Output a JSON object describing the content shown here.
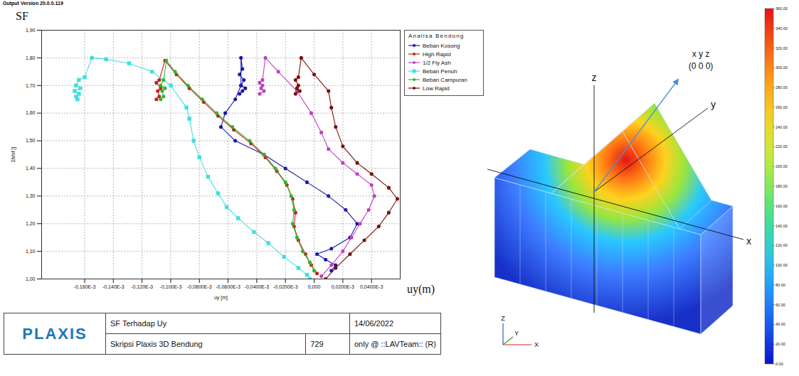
{
  "header": {
    "version": "Output Version 20.0.0.119"
  },
  "chart_data": {
    "type": "line",
    "x_label": "uy [m]",
    "y_label": "ΣMsf []",
    "annotations": [
      "SF",
      "uy(m)"
    ],
    "legend_title": "Analisa Bendung",
    "legend": "right",
    "grid": true,
    "xlim": [
      -0.00019,
      6e-05
    ],
    "ylim": [
      1.0,
      1.9
    ],
    "xticks": [
      {
        "value": -0.00016,
        "label": "-0,160E-3"
      },
      {
        "value": -0.00014,
        "label": "-0,140E-3"
      },
      {
        "value": -0.00012,
        "label": "-0,120E-3"
      },
      {
        "value": -0.0001,
        "label": "-0,100E-3"
      },
      {
        "value": -8e-05,
        "label": "-0,0800E-3"
      },
      {
        "value": -6e-05,
        "label": "-0,0600E-3"
      },
      {
        "value": -4e-05,
        "label": "-0,0400E-3"
      },
      {
        "value": -2e-05,
        "label": "-0,0200E-3"
      },
      {
        "value": 0,
        "label": "0,000"
      },
      {
        "value": 2e-05,
        "label": "0,0200E-3"
      },
      {
        "value": 4e-05,
        "label": "0,0400E-3"
      }
    ],
    "yticks": [
      {
        "value": 1.0,
        "label": "1,00"
      },
      {
        "value": 1.1,
        "label": "1,10"
      },
      {
        "value": 1.2,
        "label": "1,20"
      },
      {
        "value": 1.3,
        "label": "1,30"
      },
      {
        "value": 1.4,
        "label": "1,40"
      },
      {
        "value": 1.5,
        "label": "1,50"
      },
      {
        "value": 1.6,
        "label": "1,60"
      },
      {
        "value": 1.7,
        "label": "1,70"
      },
      {
        "value": 1.8,
        "label": "1,80"
      },
      {
        "value": 1.9,
        "label": "1,90"
      }
    ],
    "series": [
      {
        "name": "Beban Kosong",
        "color": "#1a1aa8",
        "marker": "circle",
        "x": [
          1.2e-05,
          1.5e-05,
          8e-06,
          2e-06,
          1.2e-05,
          2.5e-05,
          3e-05,
          2.2e-05,
          1e-05,
          -5e-06,
          -2e-05,
          -3.5e-05,
          -5.5e-05,
          -6.5e-05,
          -6.2e-05,
          -5.5e-05,
          -5.1e-05,
          -5.1e-05,
          -5e-05,
          -5.2e-05,
          -4.9e-05,
          -5.1e-05,
          -4.8e-05,
          -5e-05,
          -5.2e-05
        ],
        "values": [
          1.03,
          1.05,
          1.07,
          1.09,
          1.11,
          1.15,
          1.2,
          1.25,
          1.3,
          1.35,
          1.4,
          1.45,
          1.5,
          1.55,
          1.6,
          1.65,
          1.7,
          1.8,
          1.76,
          1.74,
          1.72,
          1.7,
          1.69,
          1.68,
          1.67
        ]
      },
      {
        "name": "High Rapid",
        "color": "#c81e1e",
        "marker": "circle",
        "x": [
          2e-06,
          -2e-06,
          -6e-06,
          -1.1e-05,
          -1.4e-05,
          -1.3e-05,
          -1.5e-05,
          -1.9e-05,
          -2.6e-05,
          -3.4e-05,
          -4.4e-05,
          -5.6e-05,
          -6.7e-05,
          -7.7e-05,
          -8.7e-05,
          -9.6e-05,
          -0.000104,
          -0.000108,
          -0.00011,
          -0.000107,
          -0.000109,
          -0.000108,
          -0.00011
        ],
        "values": [
          1.02,
          1.05,
          1.09,
          1.14,
          1.19,
          1.24,
          1.29,
          1.34,
          1.39,
          1.44,
          1.49,
          1.54,
          1.59,
          1.64,
          1.69,
          1.74,
          1.79,
          1.72,
          1.71,
          1.69,
          1.68,
          1.66,
          1.65
        ]
      },
      {
        "name": "1/2 Fly Ash",
        "color": "#c040c0",
        "marker": "circle",
        "x": [
          5e-06,
          1.2e-05,
          2e-05,
          2.6e-05,
          3.2e-05,
          3.8e-05,
          4.2e-05,
          4e-05,
          3e-05,
          2e-05,
          1e-05,
          5e-06,
          -2e-06,
          -1.2e-05,
          -2.5e-05,
          -3.4e-05,
          -3.6e-05,
          -3.8e-05,
          -3.6e-05,
          -3.7e-05,
          -3.5e-05,
          -3.8e-05
        ],
        "values": [
          1.01,
          1.05,
          1.1,
          1.15,
          1.2,
          1.25,
          1.3,
          1.34,
          1.38,
          1.42,
          1.47,
          1.53,
          1.6,
          1.68,
          1.75,
          1.8,
          1.72,
          1.71,
          1.7,
          1.69,
          1.68,
          1.67
        ]
      },
      {
        "name": "Beban Penuh",
        "color": "#40dede",
        "marker": "square",
        "x": [
          -3e-06,
          -5e-06,
          -1.1e-05,
          -2.1e-05,
          -3.2e-05,
          -4.2e-05,
          -5.3e-05,
          -6.1e-05,
          -6.7e-05,
          -7.4e-05,
          -8e-05,
          -8.4e-05,
          -8.7e-05,
          -8.9e-05,
          -0.0001,
          -0.000113,
          -0.000129,
          -0.000145,
          -0.000155,
          -0.00016,
          -0.000164,
          -0.000166,
          -0.000163,
          -0.000167,
          -0.000164,
          -0.000166,
          -0.000165
        ],
        "values": [
          1.0,
          1.015,
          1.04,
          1.08,
          1.13,
          1.17,
          1.22,
          1.26,
          1.31,
          1.37,
          1.44,
          1.5,
          1.58,
          1.62,
          1.7,
          1.75,
          1.78,
          1.795,
          1.8,
          1.73,
          1.72,
          1.7,
          1.69,
          1.68,
          1.67,
          1.66,
          1.65
        ]
      },
      {
        "name": "Beban Campuran",
        "color": "#2db82d",
        "marker": "circle",
        "x": [
          0,
          -3e-06,
          -8e-06,
          -1.2e-05,
          -1.5e-05,
          -1.4e-05,
          -1.6e-05,
          -2e-05,
          -2.7e-05,
          -3.5e-05,
          -4.5e-05,
          -5.7e-05,
          -6.8e-05,
          -7.8e-05,
          -8.8e-05,
          -9.7e-05,
          -0.000103,
          -0.000105,
          -0.000107,
          -0.000104,
          -0.000106,
          -0.000105,
          -0.000107
        ],
        "values": [
          1.03,
          1.06,
          1.1,
          1.15,
          1.2,
          1.25,
          1.3,
          1.35,
          1.4,
          1.45,
          1.5,
          1.55,
          1.6,
          1.65,
          1.7,
          1.75,
          1.79,
          1.72,
          1.7,
          1.69,
          1.68,
          1.66,
          1.65
        ]
      },
      {
        "name": "Low Rapid",
        "color": "#7a1010",
        "marker": "circle",
        "x": [
          8e-06,
          1.5e-05,
          2.5e-05,
          3.5e-05,
          4.5e-05,
          5.2e-05,
          5.8e-05,
          5.2e-05,
          4e-05,
          3e-05,
          2e-05,
          1.5e-05,
          1.2e-05,
          1e-05,
          0,
          -9e-06,
          -1.1e-05,
          -1.3e-05,
          -1.1e-05,
          -1.2e-05,
          -1e-05,
          -1.3e-05
        ],
        "values": [
          1.0,
          1.04,
          1.09,
          1.14,
          1.19,
          1.24,
          1.29,
          1.33,
          1.38,
          1.42,
          1.48,
          1.55,
          1.62,
          1.68,
          1.74,
          1.8,
          1.73,
          1.72,
          1.7,
          1.69,
          1.68,
          1.67
        ]
      }
    ]
  },
  "footer": {
    "logo": "PLAXIS",
    "title": "SF Terhadap Uy",
    "date": "14/06/2022",
    "project": "Skripsi Plaxis 3D Bendung",
    "number": "729",
    "license": "only @ ::LAVTeam:: (R)"
  },
  "diagram": {
    "origin_label": "x y z",
    "origin_coords": "(0 0 0)",
    "axes": {
      "x": "x",
      "y": "y",
      "z": "z"
    },
    "triad": {
      "z": "Z",
      "y": "Y",
      "x": "X"
    },
    "colorbar": {
      "range": [
        0,
        360
      ],
      "ticks": [
        {
          "value": 0,
          "label": "0.00"
        },
        {
          "value": 20,
          "label": "20.00"
        },
        {
          "value": 40,
          "label": "40.00"
        },
        {
          "value": 60,
          "label": "60.00"
        },
        {
          "value": 80,
          "label": "80.00"
        },
        {
          "value": 100,
          "label": "100.00"
        },
        {
          "value": 120,
          "label": "120.00"
        },
        {
          "value": 140,
          "label": "140.00"
        },
        {
          "value": 160,
          "label": "160.00"
        },
        {
          "value": 180,
          "label": "180.00"
        },
        {
          "value": 200,
          "label": "200.00"
        },
        {
          "value": 220,
          "label": "220.00"
        },
        {
          "value": 240,
          "label": "240.00"
        },
        {
          "value": 260,
          "label": "260.00"
        },
        {
          "value": 280,
          "label": "280.00"
        },
        {
          "value": 300,
          "label": "300.00"
        },
        {
          "value": 320,
          "label": "320.00"
        },
        {
          "value": 340,
          "label": "340.00"
        },
        {
          "value": 360,
          "label": "360.00"
        }
      ]
    }
  }
}
